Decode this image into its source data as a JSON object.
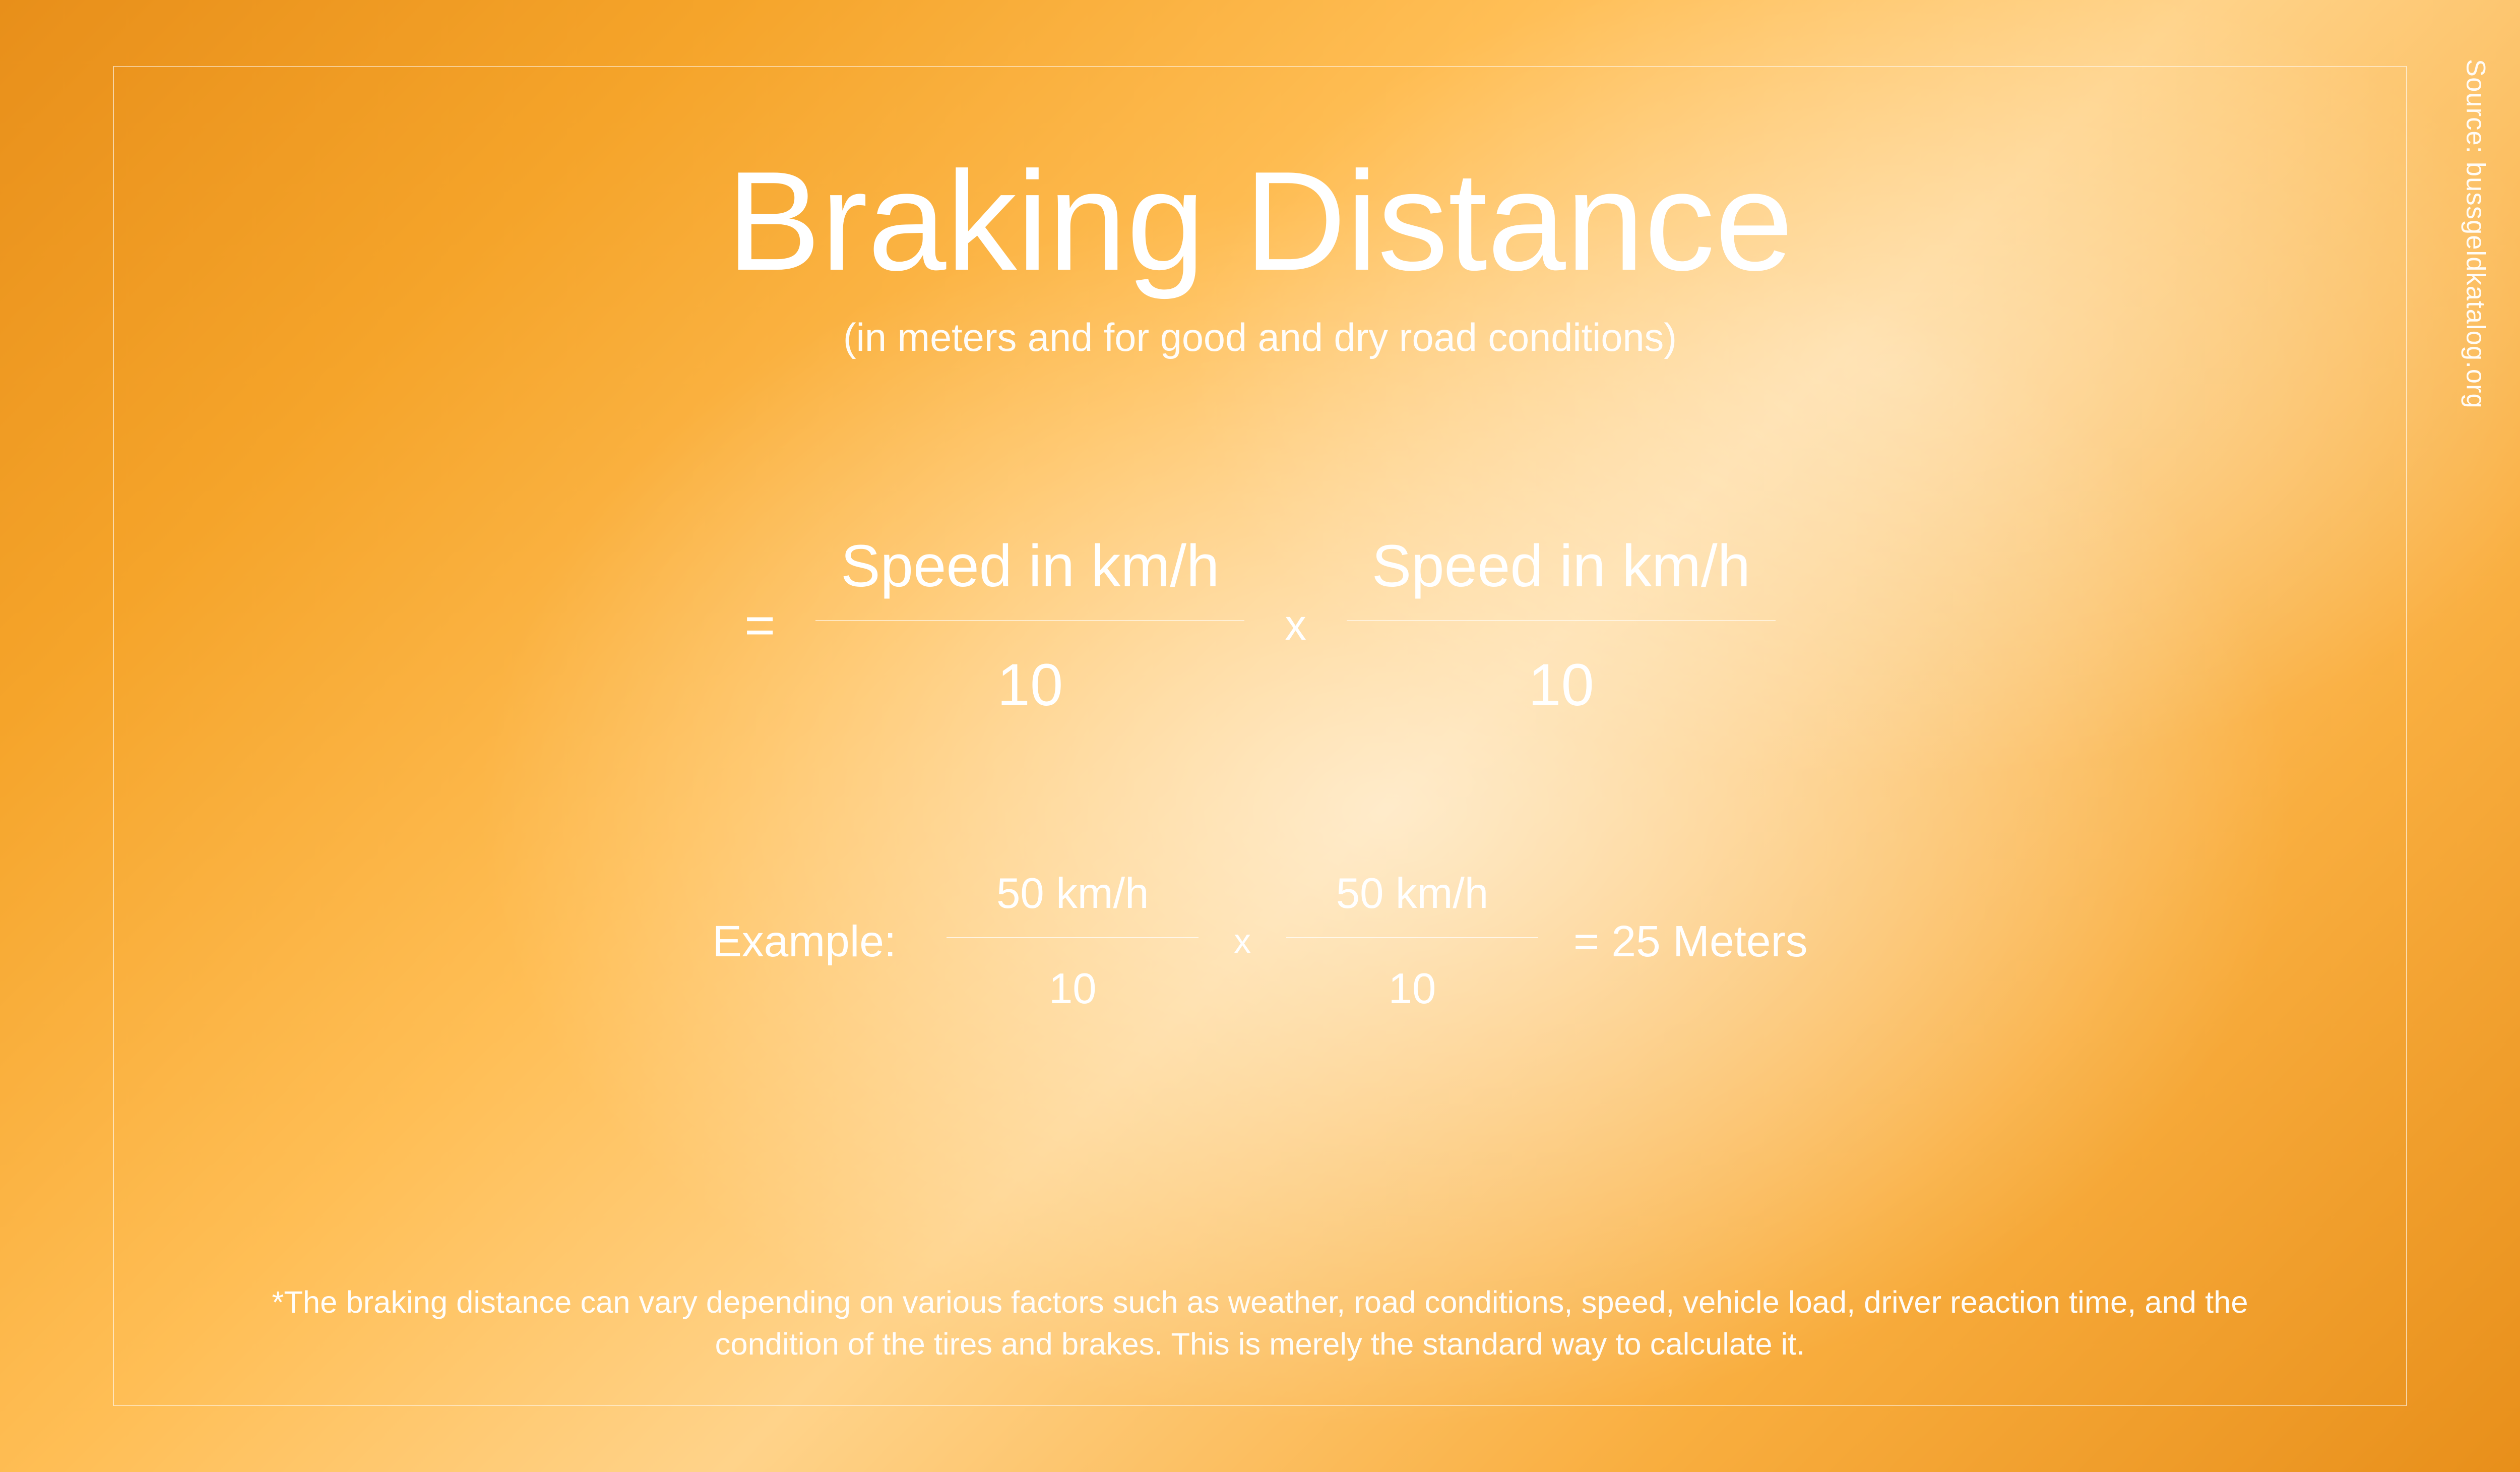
{
  "colors": {
    "text": "#ffffff",
    "frame_border": "rgba(255,255,255,0.85)",
    "bg_gradient_stops": [
      "#e88f1a",
      "#f5a42a",
      "#ffbe55",
      "#ffd38a",
      "#f9ae3f",
      "#e88f1a"
    ]
  },
  "typography": {
    "title_fontsize_vw": 5.6,
    "subtitle_fontsize_vw": 1.55,
    "formula_fontsize_vw": 2.35,
    "example_fontsize_vw": 1.75,
    "footnote_fontsize_vw": 1.23,
    "source_fontsize_vw": 1.05,
    "font_weight": 300
  },
  "layout": {
    "aspect_ratio": "16:9",
    "frame_inset_pct": 4.5
  },
  "header": {
    "title": "Braking Distance",
    "subtitle": "(in meters and for good and dry road conditions)"
  },
  "formula": {
    "equals": "=",
    "multiply": "x",
    "term1": {
      "numerator": "Speed in km/h",
      "denominator": "10"
    },
    "term2": {
      "numerator": "Speed in km/h",
      "denominator": "10"
    }
  },
  "example": {
    "label": "Example:",
    "multiply": "x",
    "term1": {
      "numerator": "50 km/h",
      "denominator": "10"
    },
    "term2": {
      "numerator": "50 km/h",
      "denominator": "10"
    },
    "result": "=  25 Meters"
  },
  "footnote": "*The braking distance can vary depending on various factors such as weather, road conditions, speed, vehicle load, driver reaction time, and the condition of the tires and brakes. This is merely the standard way to calculate it.",
  "source": "Source: bussgeldkatalog.org"
}
